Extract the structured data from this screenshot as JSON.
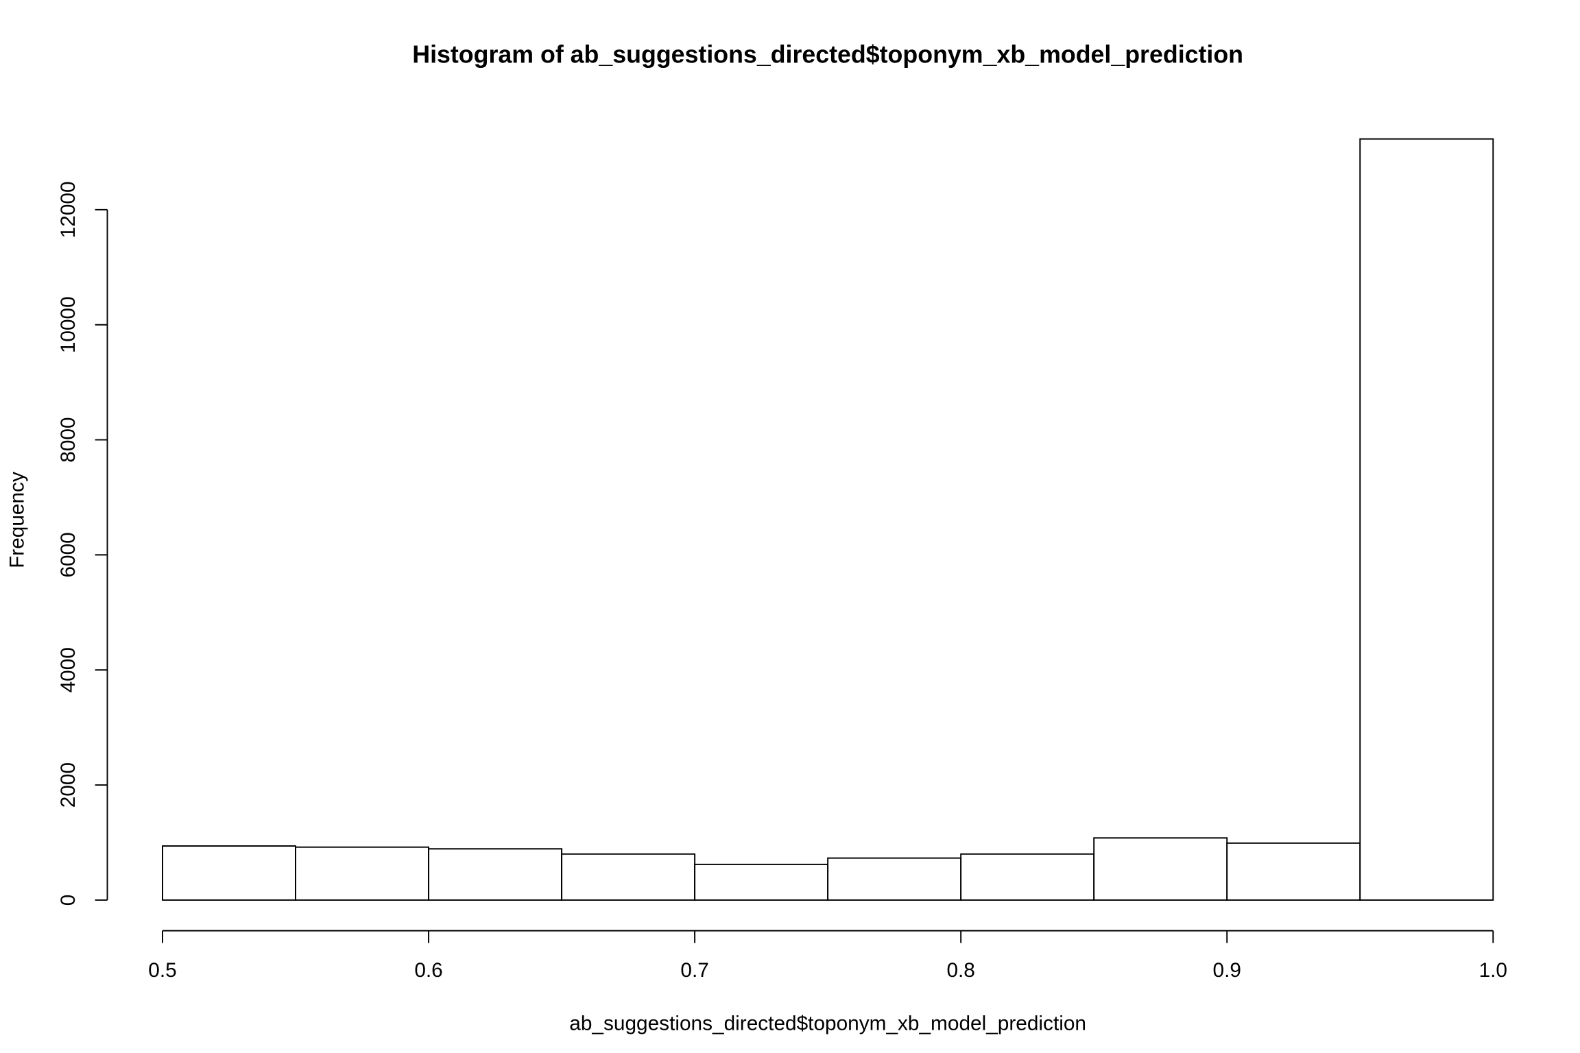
{
  "chart_data": {
    "type": "histogram",
    "title": "Histogram of ab_suggestions_directed$toponym_xb_model_prediction",
    "x_label": "ab_suggestions_directed$toponym_xb_model_prediction",
    "y_label": "Frequency",
    "bins": [
      0.5,
      0.55,
      0.6,
      0.65,
      0.7,
      0.75,
      0.8,
      0.85,
      0.9,
      0.95,
      1.0
    ],
    "values": [
      940,
      920,
      890,
      800,
      620,
      730,
      800,
      1080,
      990,
      13230
    ],
    "color": "#ffffff",
    "edgecolor": "#000000",
    "xlim": [
      0.5,
      1.0
    ],
    "xticks": [
      0.5,
      0.6,
      0.7,
      0.8,
      0.9,
      {
        "value": 1.0,
        "label": "1.0"
      }
    ],
    "ylim": [
      0,
      13230
    ],
    "yticks": [
      0,
      2000,
      4000,
      6000,
      8000,
      10000,
      12000
    ],
    "grid": false
  }
}
